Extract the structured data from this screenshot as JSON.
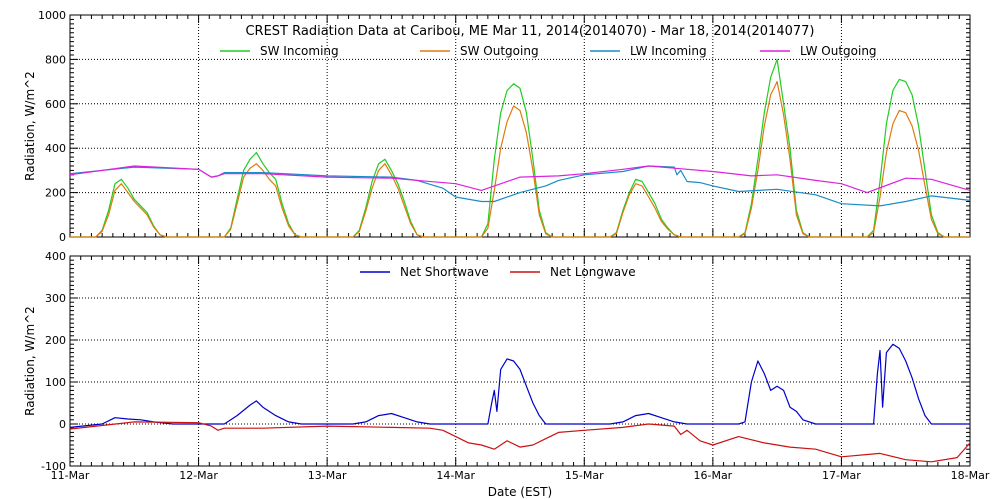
{
  "chart_data": [
    {
      "type": "line",
      "title": "CREST Radiation Data at Caribou, ME   Mar 11, 2014(2014070) - Mar 18, 2014(2014077)",
      "xlabel": "",
      "ylabel": "Radiation, W/m^2",
      "x_ticks": [
        "11-Mar",
        "12-Mar",
        "13-Mar",
        "14-Mar",
        "15-Mar",
        "16-Mar",
        "17-Mar",
        "18-Mar"
      ],
      "xlim": [
        0,
        7
      ],
      "ylim": [
        0,
        1000
      ],
      "y_ticks": [
        "0",
        "200",
        "400",
        "600",
        "800",
        "1000"
      ],
      "grid": true,
      "legend_position": "top",
      "series": [
        {
          "name": "SW Incoming",
          "color": "#22cc22",
          "x": [
            0,
            0.2,
            0.25,
            0.3,
            0.35,
            0.4,
            0.45,
            0.5,
            0.55,
            0.6,
            0.65,
            0.7,
            0.75,
            0.8,
            1.2,
            1.25,
            1.3,
            1.35,
            1.4,
            1.45,
            1.5,
            1.55,
            1.6,
            1.65,
            1.7,
            1.75,
            1.8,
            2.2,
            2.25,
            2.3,
            2.35,
            2.4,
            2.45,
            2.5,
            2.55,
            2.6,
            2.65,
            2.7,
            2.75,
            2.8,
            3.2,
            3.25,
            3.3,
            3.35,
            3.4,
            3.45,
            3.5,
            3.55,
            3.6,
            3.65,
            3.7,
            3.75,
            3.8,
            4.2,
            4.25,
            4.3,
            4.35,
            4.4,
            4.45,
            4.5,
            4.55,
            4.6,
            4.65,
            4.7,
            4.75,
            4.8,
            5.2,
            5.25,
            5.3,
            5.35,
            5.4,
            5.45,
            5.5,
            5.55,
            5.6,
            5.65,
            5.7,
            5.75,
            5.8,
            6.2,
            6.25,
            6.3,
            6.35,
            6.4,
            6.45,
            6.5,
            6.55,
            6.6,
            6.65,
            6.7,
            6.75,
            6.8,
            7
          ],
          "y": [
            0,
            0,
            30,
            120,
            240,
            260,
            220,
            170,
            140,
            110,
            50,
            10,
            0,
            0,
            0,
            40,
            170,
            300,
            350,
            380,
            330,
            290,
            260,
            150,
            60,
            10,
            0,
            0,
            30,
            130,
            250,
            330,
            350,
            300,
            240,
            160,
            70,
            10,
            0,
            0,
            0,
            60,
            350,
            560,
            660,
            690,
            670,
            560,
            350,
            120,
            20,
            0,
            0,
            0,
            20,
            120,
            200,
            260,
            250,
            200,
            150,
            80,
            40,
            10,
            0,
            0,
            0,
            20,
            150,
            350,
            560,
            720,
            800,
            600,
            400,
            120,
            20,
            0,
            0,
            0,
            30,
            250,
            510,
            660,
            710,
            700,
            640,
            500,
            300,
            100,
            20,
            0,
            0
          ]
        },
        {
          "name": "SW Outgoing",
          "color": "#e07a10",
          "x": [
            0,
            0.2,
            0.25,
            0.3,
            0.35,
            0.4,
            0.45,
            0.5,
            0.55,
            0.6,
            0.65,
            0.7,
            0.75,
            0.8,
            1.2,
            1.25,
            1.3,
            1.35,
            1.4,
            1.45,
            1.5,
            1.55,
            1.6,
            1.65,
            1.7,
            1.75,
            1.8,
            2.2,
            2.25,
            2.3,
            2.35,
            2.4,
            2.45,
            2.5,
            2.55,
            2.6,
            2.65,
            2.7,
            2.75,
            2.8,
            3.2,
            3.25,
            3.3,
            3.35,
            3.4,
            3.45,
            3.5,
            3.55,
            3.6,
            3.65,
            3.7,
            3.75,
            3.8,
            4.2,
            4.25,
            4.3,
            4.35,
            4.4,
            4.45,
            4.5,
            4.55,
            4.6,
            4.65,
            4.7,
            4.75,
            4.8,
            5.2,
            5.25,
            5.3,
            5.35,
            5.4,
            5.45,
            5.5,
            5.55,
            5.6,
            5.65,
            5.7,
            5.75,
            5.8,
            6.2,
            6.25,
            6.3,
            6.35,
            6.4,
            6.45,
            6.5,
            6.55,
            6.6,
            6.65,
            6.7,
            6.75,
            6.8,
            7
          ],
          "y": [
            0,
            0,
            25,
            100,
            210,
            240,
            200,
            160,
            130,
            100,
            45,
            10,
            0,
            0,
            0,
            35,
            150,
            270,
            310,
            330,
            300,
            260,
            230,
            130,
            50,
            10,
            0,
            0,
            25,
            115,
            220,
            300,
            330,
            280,
            220,
            140,
            60,
            10,
            0,
            0,
            0,
            40,
            210,
            400,
            520,
            590,
            570,
            470,
            300,
            100,
            15,
            0,
            0,
            0,
            15,
            110,
            190,
            240,
            230,
            180,
            130,
            70,
            35,
            10,
            0,
            0,
            0,
            15,
            130,
            300,
            500,
            640,
            700,
            550,
            350,
            100,
            15,
            0,
            0,
            0,
            20,
            180,
            380,
            510,
            570,
            560,
            500,
            390,
            230,
            80,
            15,
            0,
            0
          ]
        },
        {
          "name": "LW Incoming",
          "color": "#1a8cc8",
          "x": [
            0,
            0.5,
            1,
            1.1,
            1.15,
            1.2,
            1.5,
            2,
            2.5,
            2.7,
            2.9,
            3,
            3.2,
            3.3,
            3.5,
            3.7,
            3.8,
            4,
            4.3,
            4.5,
            4.7,
            4.72,
            4.75,
            4.8,
            4.9,
            5,
            5.2,
            5.5,
            5.8,
            6,
            6.3,
            6.5,
            6.7,
            7
          ],
          "y": [
            285,
            315,
            305,
            270,
            275,
            290,
            290,
            275,
            270,
            255,
            220,
            180,
            160,
            160,
            200,
            230,
            255,
            280,
            295,
            320,
            315,
            280,
            300,
            250,
            245,
            230,
            205,
            215,
            190,
            150,
            140,
            160,
            185,
            165
          ]
        },
        {
          "name": "LW Outgoing",
          "color": "#dd22dd",
          "x": [
            0,
            0.5,
            1,
            1.1,
            1.15,
            1.2,
            1.5,
            2,
            2.5,
            3,
            3.2,
            3.5,
            3.8,
            4,
            4.3,
            4.5,
            4.7,
            5,
            5.3,
            5.5,
            5.8,
            6,
            6.2,
            6.5,
            6.7,
            7
          ],
          "y": [
            280,
            320,
            305,
            270,
            275,
            285,
            285,
            270,
            265,
            240,
            210,
            270,
            275,
            285,
            305,
            320,
            310,
            295,
            275,
            280,
            255,
            240,
            200,
            265,
            260,
            210
          ]
        }
      ]
    },
    {
      "type": "line",
      "title": "",
      "xlabel": "Date (EST)",
      "ylabel": "Radiation, W/m^2",
      "x_ticks": [
        "11-Mar",
        "12-Mar",
        "13-Mar",
        "14-Mar",
        "15-Mar",
        "16-Mar",
        "17-Mar",
        "18-Mar"
      ],
      "xlim": [
        0,
        7
      ],
      "ylim": [
        -100,
        400
      ],
      "y_ticks": [
        "-100",
        "0",
        "100",
        "200",
        "300",
        "400"
      ],
      "grid": true,
      "legend_position": "top",
      "series": [
        {
          "name": "Net Shortwave",
          "color": "#0000cc",
          "x": [
            0,
            0.25,
            0.35,
            0.45,
            0.55,
            0.65,
            0.8,
            1.2,
            1.3,
            1.4,
            1.45,
            1.5,
            1.6,
            1.7,
            1.8,
            2.2,
            2.3,
            2.4,
            2.5,
            2.6,
            2.7,
            2.8,
            3.2,
            3.25,
            3.28,
            3.3,
            3.32,
            3.35,
            3.4,
            3.45,
            3.5,
            3.55,
            3.6,
            3.65,
            3.7,
            3.8,
            4.2,
            4.3,
            4.4,
            4.5,
            4.6,
            4.7,
            4.8,
            5.2,
            5.25,
            5.3,
            5.35,
            5.4,
            5.45,
            5.5,
            5.55,
            5.6,
            5.65,
            5.7,
            5.8,
            6.2,
            6.25,
            6.28,
            6.3,
            6.32,
            6.35,
            6.4,
            6.45,
            6.5,
            6.55,
            6.6,
            6.65,
            6.7,
            7
          ],
          "y": [
            -8,
            0,
            15,
            12,
            10,
            5,
            0,
            0,
            20,
            45,
            55,
            40,
            20,
            5,
            0,
            0,
            5,
            20,
            25,
            15,
            5,
            0,
            0,
            0,
            50,
            80,
            30,
            130,
            155,
            150,
            130,
            90,
            50,
            20,
            0,
            0,
            0,
            5,
            20,
            25,
            15,
            5,
            0,
            0,
            5,
            100,
            150,
            120,
            80,
            90,
            80,
            40,
            30,
            10,
            0,
            0,
            0,
            120,
            175,
            40,
            170,
            190,
            180,
            150,
            110,
            60,
            20,
            0,
            0
          ]
        },
        {
          "name": "Net Longwave",
          "color": "#cc1111",
          "x": [
            0,
            0.5,
            1,
            1.1,
            1.15,
            1.2,
            1.5,
            2,
            2.5,
            2.8,
            2.9,
            3,
            3.1,
            3.2,
            3.3,
            3.4,
            3.5,
            3.6,
            3.7,
            3.8,
            4,
            4.3,
            4.5,
            4.7,
            4.75,
            4.8,
            4.9,
            5,
            5.2,
            5.4,
            5.6,
            5.8,
            6,
            6.3,
            6.5,
            6.7,
            6.9,
            7
          ],
          "y": [
            -12,
            5,
            3,
            -5,
            -15,
            -10,
            -10,
            -5,
            -8,
            -10,
            -15,
            -30,
            -45,
            -50,
            -60,
            -40,
            -55,
            -50,
            -35,
            -20,
            -15,
            -8,
            0,
            -5,
            -25,
            -15,
            -40,
            -50,
            -30,
            -45,
            -55,
            -60,
            -78,
            -70,
            -85,
            -90,
            -80,
            -45
          ]
        }
      ]
    }
  ]
}
